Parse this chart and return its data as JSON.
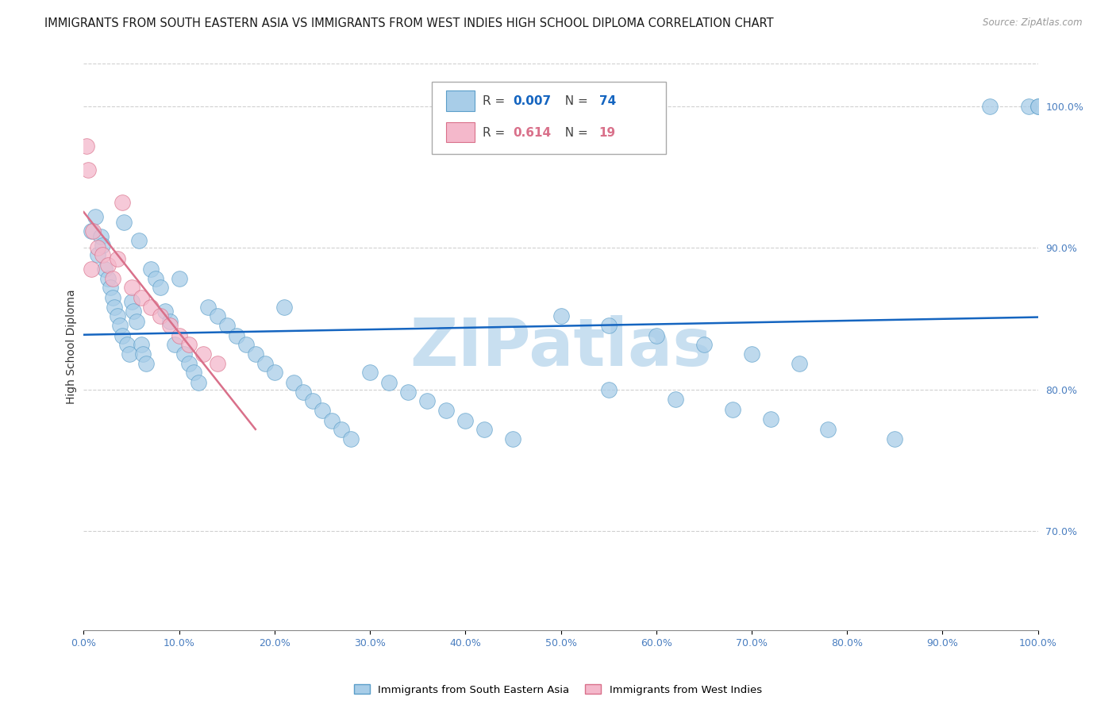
{
  "title": "IMMIGRANTS FROM SOUTH EASTERN ASIA VS IMMIGRANTS FROM WEST INDIES HIGH SCHOOL DIPLOMA CORRELATION CHART",
  "source": "Source: ZipAtlas.com",
  "ylabel": "High School Diploma",
  "R_blue": 0.007,
  "N_blue": 74,
  "R_pink": 0.614,
  "N_pink": 19,
  "blue_color": "#a8cde8",
  "pink_color": "#f4b8cb",
  "blue_edge": "#5b9ec9",
  "pink_edge": "#d9708a",
  "trend_blue": "#1565c0",
  "trend_pink": "#d9708a",
  "watermark": "ZIPatlas",
  "watermark_color": "#c8dff0",
  "legend1_label": "Immigrants from South Eastern Asia",
  "legend2_label": "Immigrants from West Indies",
  "xlim": [
    0,
    100
  ],
  "ylim": [
    0.63,
    1.03
  ],
  "yticks": [
    0.7,
    0.8,
    0.9,
    1.0
  ],
  "yticklabels": [
    "70.0%",
    "80.0%",
    "90.0%",
    "100.0%"
  ],
  "xticks": [
    0,
    10,
    20,
    30,
    40,
    50,
    60,
    70,
    80,
    90,
    100
  ],
  "xticklabels": [
    "0.0%",
    "10.0%",
    "20.0%",
    "30.0%",
    "40.0%",
    "50.0%",
    "60.0%",
    "70.0%",
    "80.0%",
    "90.0%",
    "100.0%"
  ],
  "blue_dots_x": [
    0.8,
    1.2,
    1.5,
    1.8,
    2.0,
    2.2,
    2.5,
    2.8,
    3.0,
    3.2,
    3.5,
    3.8,
    4.0,
    4.2,
    4.5,
    4.8,
    5.0,
    5.2,
    5.5,
    5.8,
    6.0,
    6.2,
    6.5,
    7.0,
    7.5,
    8.0,
    8.5,
    9.0,
    9.5,
    10.0,
    10.5,
    11.0,
    11.5,
    12.0,
    13.0,
    14.0,
    15.0,
    16.0,
    17.0,
    18.0,
    19.0,
    20.0,
    21.0,
    22.0,
    23.0,
    24.0,
    25.0,
    26.0,
    27.0,
    28.0,
    30.0,
    32.0,
    34.0,
    36.0,
    38.0,
    40.0,
    42.0,
    45.0,
    50.0,
    55.0,
    60.0,
    65.0,
    70.0,
    75.0,
    55.0,
    62.0,
    68.0,
    72.0,
    78.0,
    85.0,
    95.0,
    99.0,
    100.0,
    100.0
  ],
  "blue_dots_y": [
    0.912,
    0.922,
    0.895,
    0.908,
    0.902,
    0.885,
    0.878,
    0.872,
    0.865,
    0.858,
    0.852,
    0.845,
    0.838,
    0.918,
    0.832,
    0.825,
    0.862,
    0.855,
    0.848,
    0.905,
    0.832,
    0.825,
    0.818,
    0.885,
    0.878,
    0.872,
    0.855,
    0.848,
    0.832,
    0.878,
    0.825,
    0.818,
    0.812,
    0.805,
    0.858,
    0.852,
    0.845,
    0.838,
    0.832,
    0.825,
    0.818,
    0.812,
    0.858,
    0.805,
    0.798,
    0.792,
    0.785,
    0.778,
    0.772,
    0.765,
    0.812,
    0.805,
    0.798,
    0.792,
    0.785,
    0.778,
    0.772,
    0.765,
    0.852,
    0.845,
    0.838,
    0.832,
    0.825,
    0.818,
    0.8,
    0.793,
    0.786,
    0.779,
    0.772,
    0.765,
    1.0,
    1.0,
    1.0,
    1.0
  ],
  "pink_dots_x": [
    0.3,
    0.5,
    0.8,
    1.0,
    1.5,
    2.0,
    2.5,
    3.0,
    3.5,
    4.0,
    5.0,
    6.0,
    7.0,
    8.0,
    9.0,
    10.0,
    11.0,
    12.5,
    14.0
  ],
  "pink_dots_y": [
    0.972,
    0.955,
    0.885,
    0.912,
    0.9,
    0.895,
    0.888,
    0.878,
    0.892,
    0.932,
    0.872,
    0.865,
    0.858,
    0.852,
    0.845,
    0.838,
    0.832,
    0.825,
    0.818
  ]
}
